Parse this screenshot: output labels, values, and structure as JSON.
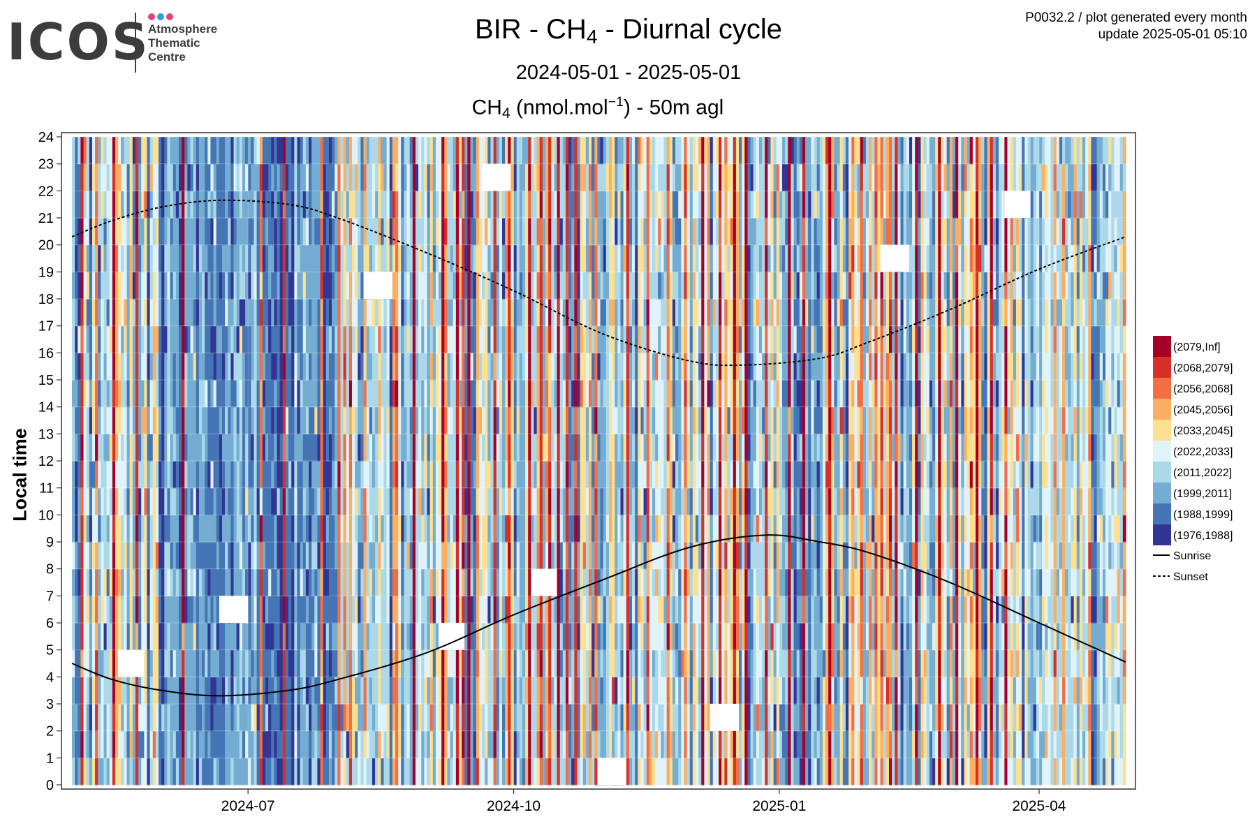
{
  "logo": {
    "wordmark": "ICOS",
    "lines": [
      "Atmosphere",
      "Thematic",
      "Centre"
    ],
    "dot_colors": [
      "#e8417a",
      "#1fa2e8",
      "#e8417a"
    ]
  },
  "meta": {
    "line1": "P0032.2 / plot generated every month",
    "line2": "update  2025-05-01 05:10"
  },
  "title": {
    "station": "BIR",
    "species_base": "CH",
    "species_sub": "4",
    "suffix": "Diurnal cycle"
  },
  "subtitle": "2024-05-01 - 2025-05-01",
  "plot_title": {
    "species_base": "CH",
    "species_sub": "4",
    "unit_left": "(nmol.mol",
    "unit_exp": "−1",
    "unit_right": ") - 50m agl"
  },
  "chart_data": {
    "type": "heatmap",
    "x_start": "2024-05-01",
    "x_end": "2025-05-01",
    "x_ticks": [
      "2024-07",
      "2024-10",
      "2025-01",
      "2025-04"
    ],
    "x_tick_dates": [
      "2024-07-01",
      "2024-10-01",
      "2025-01-01",
      "2025-04-01"
    ],
    "ylabel": "Local time",
    "y_ticks": [
      0,
      1,
      2,
      3,
      4,
      5,
      6,
      7,
      8,
      9,
      10,
      11,
      12,
      13,
      14,
      15,
      16,
      17,
      18,
      19,
      20,
      21,
      22,
      23,
      24
    ],
    "ylim": [
      0,
      24
    ],
    "grid": true,
    "legend_position": "right",
    "color_bins": [
      {
        "label": "(2079,Inf]",
        "color": "#a50026"
      },
      {
        "label": "(2068,2079]",
        "color": "#d73027"
      },
      {
        "label": "(2056,2068]",
        "color": "#f46d43"
      },
      {
        "label": "(2045,2056]",
        "color": "#fdae61"
      },
      {
        "label": "(2033,2045]",
        "color": "#fee090"
      },
      {
        "label": "(2022,2033]",
        "color": "#e0f3f8"
      },
      {
        "label": "(2011,2022]",
        "color": "#abd9e9"
      },
      {
        "label": "(1999,2011]",
        "color": "#74add1"
      },
      {
        "label": "(1988,1999]",
        "color": "#4575b4"
      },
      {
        "label": "(1976,1988]",
        "color": "#313695"
      }
    ],
    "lines": [
      {
        "name": "Sunrise",
        "style": "solid",
        "x": [
          "2024-05-01",
          "2024-05-15",
          "2024-06-01",
          "2024-06-21",
          "2024-07-15",
          "2024-08-01",
          "2024-09-01",
          "2024-10-01",
          "2024-11-01",
          "2024-12-01",
          "2024-12-27",
          "2025-01-15",
          "2025-02-01",
          "2025-03-01",
          "2025-04-01",
          "2025-05-01"
        ],
        "y": [
          4.5,
          3.9,
          3.5,
          3.3,
          3.5,
          3.9,
          4.9,
          6.3,
          7.6,
          8.8,
          9.25,
          9.0,
          8.6,
          7.5,
          6.0,
          4.55
        ]
      },
      {
        "name": "Sunset",
        "style": "dashed",
        "x": [
          "2024-05-01",
          "2024-05-15",
          "2024-06-01",
          "2024-06-21",
          "2024-07-15",
          "2024-08-01",
          "2024-09-01",
          "2024-10-01",
          "2024-11-01",
          "2024-12-01",
          "2024-12-20",
          "2025-01-15",
          "2025-02-01",
          "2025-03-01",
          "2025-04-01",
          "2025-05-01"
        ],
        "y": [
          20.3,
          20.9,
          21.4,
          21.65,
          21.5,
          21.0,
          19.7,
          18.3,
          16.7,
          15.7,
          15.55,
          15.8,
          16.4,
          17.6,
          19.1,
          20.3
        ]
      }
    ],
    "stripe_pattern": {
      "days": 365,
      "high_concentration_days": [
        3,
        8,
        14,
        22,
        38,
        65,
        73,
        86,
        92,
        112,
        118,
        128,
        133,
        135,
        137,
        146,
        151,
        158,
        162,
        165,
        168,
        171,
        174,
        181,
        192,
        199,
        206,
        212,
        218,
        224,
        229,
        233,
        240,
        248,
        253,
        262,
        273,
        278,
        280,
        283,
        285,
        292,
        300,
        306,
        313,
        318,
        323
      ],
      "low_concentration_span": [
        30,
        90
      ],
      "missing_blocks": [
        {
          "start": "2024-05-17",
          "end": "2024-05-26",
          "h0": 4,
          "h1": 5
        },
        {
          "start": "2024-06-21",
          "end": "2024-07-01",
          "h0": 6,
          "h1": 7
        },
        {
          "start": "2024-08-10",
          "end": "2024-08-20",
          "h0": 18,
          "h1": 19
        },
        {
          "start": "2024-09-05",
          "end": "2024-09-14",
          "h0": 5,
          "h1": 6
        },
        {
          "start": "2024-09-20",
          "end": "2024-09-30",
          "h0": 22,
          "h1": 23
        },
        {
          "start": "2024-10-07",
          "end": "2024-10-16",
          "h0": 7,
          "h1": 8
        },
        {
          "start": "2024-10-30",
          "end": "2024-11-09",
          "h0": 0,
          "h1": 1
        },
        {
          "start": "2024-12-08",
          "end": "2024-12-18",
          "h0": 2,
          "h1": 3
        },
        {
          "start": "2025-02-05",
          "end": "2025-02-15",
          "h0": 19,
          "h1": 20
        },
        {
          "start": "2025-03-20",
          "end": "2025-03-29",
          "h0": 21,
          "h1": 22
        }
      ]
    }
  }
}
